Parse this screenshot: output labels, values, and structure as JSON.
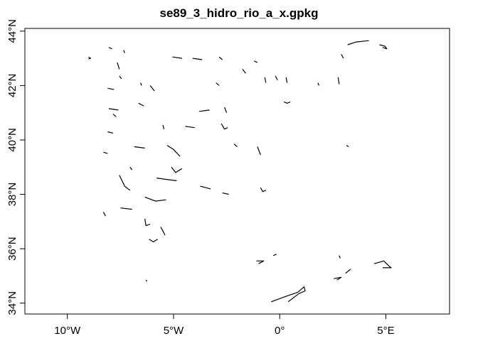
{
  "chart_data": {
    "type": "map",
    "title": "se89_3_hidro_rio_a_x.gpkg",
    "xlim": [
      -12,
      8
    ],
    "ylim": [
      33.6,
      44.1
    ],
    "x_ticks": [
      {
        "value": -10,
        "label": "10°W"
      },
      {
        "value": -5,
        "label": "5°W"
      },
      {
        "value": 0,
        "label": "0°"
      },
      {
        "value": 5,
        "label": "5°E"
      }
    ],
    "y_ticks": [
      {
        "value": 34,
        "label": "34°N"
      },
      {
        "value": 36,
        "label": "36°N"
      },
      {
        "value": 38,
        "label": "38°N"
      },
      {
        "value": 40,
        "label": "40°N"
      },
      {
        "value": 42,
        "label": "42°N"
      },
      {
        "value": 44,
        "label": "44°N"
      }
    ],
    "polygons": [
      [
        [
          -9.0,
          43.05
        ],
        [
          -8.9,
          43.0
        ],
        [
          -9.0,
          42.98
        ]
      ],
      [
        [
          -8.05,
          43.4
        ],
        [
          -7.9,
          43.35
        ]
      ],
      [
        [
          -7.35,
          43.3
        ],
        [
          -7.3,
          43.2
        ]
      ],
      [
        [
          -7.65,
          42.85
        ],
        [
          -7.55,
          42.6
        ]
      ],
      [
        [
          -7.55,
          42.35
        ],
        [
          -7.45,
          42.25
        ]
      ],
      [
        [
          -8.1,
          41.9
        ],
        [
          -7.8,
          41.85
        ]
      ],
      [
        [
          -6.1,
          42.0
        ],
        [
          -5.9,
          41.8
        ]
      ],
      [
        [
          -6.55,
          42.1
        ],
        [
          -6.5,
          42.0
        ]
      ],
      [
        [
          -5.05,
          43.05
        ],
        [
          -4.6,
          43.0
        ]
      ],
      [
        [
          -4.1,
          43.0
        ],
        [
          -3.65,
          42.95
        ]
      ],
      [
        [
          -2.85,
          43.05
        ],
        [
          -2.7,
          42.95
        ]
      ],
      [
        [
          -1.2,
          42.9
        ],
        [
          -1.05,
          42.85
        ]
      ],
      [
        [
          -0.7,
          42.3
        ],
        [
          -0.65,
          42.1
        ]
      ],
      [
        [
          -0.2,
          42.35
        ],
        [
          -0.1,
          42.2
        ]
      ],
      [
        [
          0.3,
          42.3
        ],
        [
          0.35,
          42.1
        ]
      ],
      [
        [
          1.8,
          42.1
        ],
        [
          1.85,
          42.0
        ]
      ],
      [
        [
          2.75,
          42.3
        ],
        [
          2.8,
          42.05
        ]
      ],
      [
        [
          2.9,
          43.15
        ],
        [
          3.0,
          43.0
        ]
      ],
      [
        [
          3.2,
          43.5
        ],
        [
          3.6,
          43.6
        ],
        [
          4.2,
          43.65
        ]
      ],
      [
        [
          4.7,
          43.5
        ],
        [
          4.95,
          43.45
        ],
        [
          5.05,
          43.35
        ],
        [
          4.85,
          43.4
        ]
      ],
      [
        [
          -8.05,
          41.15
        ],
        [
          -7.6,
          41.1
        ]
      ],
      [
        [
          -6.65,
          41.35
        ],
        [
          -6.4,
          41.25
        ]
      ],
      [
        [
          -3.8,
          41.05
        ],
        [
          -3.3,
          41.1
        ]
      ],
      [
        [
          -2.6,
          41.2
        ],
        [
          -2.5,
          41.0
        ]
      ],
      [
        [
          0.2,
          41.4
        ],
        [
          0.35,
          41.35
        ],
        [
          0.5,
          41.4
        ]
      ],
      [
        [
          -8.1,
          40.3
        ],
        [
          -7.85,
          40.25
        ]
      ],
      [
        [
          -5.5,
          40.55
        ],
        [
          -5.45,
          40.4
        ]
      ],
      [
        [
          -4.45,
          40.5
        ],
        [
          -4.0,
          40.45
        ]
      ],
      [
        [
          -2.75,
          40.6
        ],
        [
          -2.6,
          40.4
        ],
        [
          -2.45,
          40.45
        ]
      ],
      [
        [
          -6.85,
          39.75
        ],
        [
          -6.35,
          39.7
        ]
      ],
      [
        [
          -5.3,
          39.8
        ],
        [
          -5.0,
          39.65
        ],
        [
          -4.7,
          39.4
        ]
      ],
      [
        [
          -5.1,
          39.0
        ],
        [
          -4.9,
          38.8
        ],
        [
          -4.6,
          38.95
        ]
      ],
      [
        [
          -2.15,
          39.85
        ],
        [
          -2.0,
          39.75
        ]
      ],
      [
        [
          -1.05,
          39.75
        ],
        [
          -0.9,
          39.45
        ]
      ],
      [
        [
          -8.3,
          39.55
        ],
        [
          -8.1,
          39.5
        ]
      ],
      [
        [
          -7.55,
          38.7
        ],
        [
          -7.3,
          38.3
        ],
        [
          -7.05,
          38.15
        ]
      ],
      [
        [
          -5.8,
          38.6
        ],
        [
          -5.35,
          38.55
        ],
        [
          -4.85,
          38.5
        ]
      ],
      [
        [
          -3.75,
          38.3
        ],
        [
          -3.25,
          38.2
        ]
      ],
      [
        [
          -2.7,
          38.05
        ],
        [
          -2.4,
          38.0
        ]
      ],
      [
        [
          -0.9,
          38.25
        ],
        [
          -0.8,
          38.1
        ],
        [
          -0.65,
          38.15
        ]
      ],
      [
        [
          -6.35,
          37.9
        ],
        [
          -5.85,
          37.75
        ],
        [
          -5.35,
          37.8
        ]
      ],
      [
        [
          -7.5,
          37.5
        ],
        [
          -6.95,
          37.45
        ]
      ],
      [
        [
          -8.3,
          37.35
        ],
        [
          -8.2,
          37.2
        ]
      ],
      [
        [
          -6.35,
          37.1
        ],
        [
          -6.3,
          36.85
        ],
        [
          -6.1,
          36.9
        ]
      ],
      [
        [
          -5.6,
          36.8
        ],
        [
          -5.4,
          36.5
        ]
      ],
      [
        [
          -6.15,
          36.35
        ],
        [
          -5.95,
          36.25
        ],
        [
          -5.75,
          36.35
        ]
      ],
      [
        [
          -6.3,
          34.85
        ],
        [
          -6.25,
          34.8
        ]
      ],
      [
        [
          -1.1,
          35.55
        ],
        [
          -0.75,
          35.55
        ],
        [
          -1.0,
          35.45
        ]
      ],
      [
        [
          -0.3,
          35.75
        ],
        [
          -0.15,
          35.8
        ]
      ],
      [
        [
          -0.4,
          34.05
        ],
        [
          0.3,
          34.25
        ],
        [
          0.85,
          34.4
        ],
        [
          1.15,
          34.6
        ],
        [
          1.2,
          34.45
        ],
        [
          0.9,
          34.35
        ],
        [
          0.4,
          34.05
        ]
      ],
      [
        [
          2.55,
          34.9
        ],
        [
          2.9,
          34.95
        ],
        [
          2.7,
          34.85
        ]
      ],
      [
        [
          3.1,
          35.1
        ],
        [
          3.35,
          35.25
        ]
      ],
      [
        [
          2.8,
          35.75
        ],
        [
          2.85,
          35.65
        ]
      ],
      [
        [
          4.45,
          35.45
        ],
        [
          4.9,
          35.55
        ],
        [
          5.1,
          35.4
        ],
        [
          5.25,
          35.3
        ],
        [
          4.85,
          35.3
        ]
      ],
      [
        [
          3.15,
          39.8
        ],
        [
          3.25,
          39.75
        ]
      ],
      [
        [
          -3.0,
          42.1
        ],
        [
          -2.85,
          42.0
        ]
      ],
      [
        [
          -1.75,
          42.6
        ],
        [
          -1.6,
          42.45
        ]
      ],
      [
        [
          -7.05,
          39.0
        ],
        [
          -6.95,
          38.9
        ]
      ],
      [
        [
          -7.85,
          40.95
        ],
        [
          -7.7,
          40.85
        ]
      ]
    ]
  }
}
